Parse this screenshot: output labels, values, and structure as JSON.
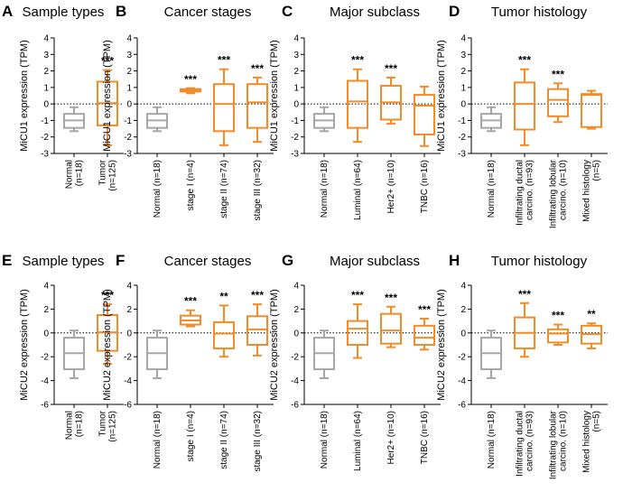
{
  "chart_data": [
    {
      "type": "box",
      "label": "A",
      "title": "Sample types",
      "ylabel": "MiCU1 expression (TPM)",
      "categories": [
        [
          "Normal",
          "(n=18)"
        ],
        [
          "Tumor",
          "(n=125)"
        ]
      ],
      "boxes": [
        {
          "whislo": -1.65,
          "q1": -1.45,
          "med": -1.0,
          "q3": -0.6,
          "whishi": -0.2,
          "color": "#a6a6a6"
        },
        {
          "whislo": -2.5,
          "q1": -1.3,
          "med": 0.05,
          "q3": 1.35,
          "whishi": 2.05,
          "color": "#f28c28"
        }
      ],
      "sig": [
        null,
        "***"
      ],
      "ylim": [
        -3,
        4
      ],
      "yticks": [
        -3,
        -2,
        -1,
        0,
        1,
        2,
        3,
        4
      ],
      "refline": 0
    },
    {
      "type": "box",
      "label": "B",
      "title": "Cancer stages",
      "ylabel": "MiCU1 expression (TPM)",
      "categories": [
        [
          "Normal (n=18)"
        ],
        [
          "stage I (n=4)"
        ],
        [
          "stage II (n=74)"
        ],
        [
          "stage III (n=32)"
        ]
      ],
      "boxes": [
        {
          "whislo": -1.65,
          "q1": -1.45,
          "med": -1.0,
          "q3": -0.6,
          "whishi": -0.2,
          "color": "#a6a6a6"
        },
        {
          "whislo": 0.65,
          "q1": 0.75,
          "med": 0.85,
          "q3": 0.9,
          "whishi": 0.95,
          "color": "#f28c28"
        },
        {
          "whislo": -2.5,
          "q1": -1.65,
          "med": 0.0,
          "q3": 1.2,
          "whishi": 2.1,
          "color": "#f28c28"
        },
        {
          "whislo": -2.3,
          "q1": -1.45,
          "med": 0.1,
          "q3": 1.2,
          "whishi": 1.6,
          "color": "#f28c28"
        }
      ],
      "sig": [
        null,
        "***",
        "***",
        "***"
      ],
      "ylim": [
        -3,
        4
      ],
      "yticks": [
        -3,
        -2,
        -1,
        0,
        1,
        2,
        3,
        4
      ],
      "refline": 0
    },
    {
      "type": "box",
      "label": "C",
      "title": "Major subclass",
      "ylabel": "MiCU1 expression (TPM)",
      "categories": [
        [
          "Normal (n=18)"
        ],
        [
          "Luminal (n=64)"
        ],
        [
          "Her2+ (n=10)"
        ],
        [
          "TNBC (n=16)"
        ]
      ],
      "boxes": [
        {
          "whislo": -1.65,
          "q1": -1.45,
          "med": -1.0,
          "q3": -0.6,
          "whishi": -0.2,
          "color": "#a6a6a6"
        },
        {
          "whislo": -2.3,
          "q1": -1.45,
          "med": 0.15,
          "q3": 1.4,
          "whishi": 2.1,
          "color": "#f28c28"
        },
        {
          "whislo": -1.2,
          "q1": -0.95,
          "med": 0.1,
          "q3": 1.1,
          "whishi": 1.6,
          "color": "#f28c28"
        },
        {
          "whislo": -2.55,
          "q1": -1.85,
          "med": -0.1,
          "q3": 0.55,
          "whishi": 1.05,
          "color": "#f28c28"
        }
      ],
      "sig": [
        null,
        "***",
        "***",
        null
      ],
      "ylim": [
        -3,
        4
      ],
      "yticks": [
        -3,
        -2,
        -1,
        0,
        1,
        2,
        3,
        4
      ],
      "refline": 0
    },
    {
      "type": "box",
      "label": "D",
      "title": "Tumor histology",
      "ylabel": "MiCU1 expression (TPM)",
      "categories": [
        [
          "Normal (n=18)"
        ],
        [
          "Infiltrating ductal",
          "carcino. (n=93)"
        ],
        [
          "Infiltrating lobular",
          "carcino. (n=10)"
        ],
        [
          "Mixed histology",
          "(n=5)"
        ]
      ],
      "boxes": [
        {
          "whislo": -1.65,
          "q1": -1.45,
          "med": -1.0,
          "q3": -0.6,
          "whishi": -0.2,
          "color": "#a6a6a6"
        },
        {
          "whislo": -2.5,
          "q1": -1.55,
          "med": 0.0,
          "q3": 1.3,
          "whishi": 2.1,
          "color": "#f28c28"
        },
        {
          "whislo": -1.1,
          "q1": -0.75,
          "med": 0.25,
          "q3": 0.9,
          "whishi": 1.25,
          "color": "#f28c28"
        },
        {
          "whislo": -1.5,
          "q1": -1.4,
          "med": 0.55,
          "q3": 0.6,
          "whishi": 0.8,
          "color": "#f28c28"
        }
      ],
      "sig": [
        null,
        "***",
        "***",
        null
      ],
      "ylim": [
        -3,
        4
      ],
      "yticks": [
        -3,
        -2,
        -1,
        0,
        1,
        2,
        3,
        4
      ],
      "refline": 0
    },
    {
      "type": "box",
      "label": "E",
      "title": "Sample types",
      "ylabel": "MiCU2 expression (TPM)",
      "categories": [
        [
          "Normal",
          "(n=18)"
        ],
        [
          "Tumor",
          "(n=125)"
        ]
      ],
      "boxes": [
        {
          "whislo": -3.8,
          "q1": -3.05,
          "med": -1.7,
          "q3": -0.4,
          "whishi": 0.2,
          "color": "#a6a6a6"
        },
        {
          "whislo": -2.6,
          "q1": -1.5,
          "med": 0.05,
          "q3": 1.5,
          "whishi": 2.4,
          "color": "#f28c28"
        }
      ],
      "sig": [
        null,
        "***"
      ],
      "ylim": [
        -6,
        4
      ],
      "yticks": [
        -6,
        -4,
        -2,
        0,
        2,
        4
      ],
      "refline": 0
    },
    {
      "type": "box",
      "label": "F",
      "title": "Cancer stages",
      "ylabel": "MiCU2 expression (TPM)",
      "categories": [
        [
          "Normal (n=18)"
        ],
        [
          "stage I (n=4)"
        ],
        [
          "stage II (n=74)"
        ],
        [
          "stage III (n=32)"
        ]
      ],
      "boxes": [
        {
          "whislo": -3.8,
          "q1": -3.05,
          "med": -1.7,
          "q3": -0.4,
          "whishi": 0.2,
          "color": "#a6a6a6"
        },
        {
          "whislo": 0.55,
          "q1": 0.7,
          "med": 1.05,
          "q3": 1.45,
          "whishi": 1.9,
          "color": "#f28c28"
        },
        {
          "whislo": -2.0,
          "q1": -1.3,
          "med": -0.05,
          "q3": 0.9,
          "whishi": 2.3,
          "color": "#f28c28"
        },
        {
          "whislo": -1.9,
          "q1": -1.0,
          "med": 0.3,
          "q3": 1.4,
          "whishi": 2.4,
          "color": "#f28c28"
        }
      ],
      "sig": [
        null,
        "***",
        "**",
        "***"
      ],
      "ylim": [
        -6,
        4
      ],
      "yticks": [
        -6,
        -4,
        -2,
        0,
        2,
        4
      ],
      "refline": 0
    },
    {
      "type": "box",
      "label": "G",
      "title": "Major subclass",
      "ylabel": "MiCU2 expression (TPM)",
      "categories": [
        [
          "Normal (n=18)"
        ],
        [
          "Luminal (n=64)"
        ],
        [
          "Her2+ (n=10)"
        ],
        [
          "TNBC (n=16)"
        ]
      ],
      "boxes": [
        {
          "whislo": -3.8,
          "q1": -3.05,
          "med": -1.7,
          "q3": -0.4,
          "whishi": 0.2,
          "color": "#a6a6a6"
        },
        {
          "whislo": -2.1,
          "q1": -1.0,
          "med": 0.35,
          "q3": 1.0,
          "whishi": 2.4,
          "color": "#f28c28"
        },
        {
          "whislo": -1.2,
          "q1": -0.9,
          "med": 0.2,
          "q3": 1.6,
          "whishi": 2.2,
          "color": "#f28c28"
        },
        {
          "whislo": -1.4,
          "q1": -1.0,
          "med": -0.4,
          "q3": 0.6,
          "whishi": 1.2,
          "color": "#f28c28"
        }
      ],
      "sig": [
        null,
        "***",
        "***",
        "***"
      ],
      "ylim": [
        -6,
        4
      ],
      "yticks": [
        -6,
        -4,
        -2,
        0,
        2,
        4
      ],
      "refline": 0
    },
    {
      "type": "box",
      "label": "H",
      "title": "Tumor histology",
      "ylabel": "MiCU2 expression (TPM)",
      "categories": [
        [
          "Normal (n=18)"
        ],
        [
          "Infiltrating ductal",
          "carcino. (n=93)"
        ],
        [
          "Infiltrating lobular",
          "carcino. (n=10)"
        ],
        [
          "Mixed histology",
          "(n=5)"
        ]
      ],
      "boxes": [
        {
          "whislo": -3.8,
          "q1": -3.05,
          "med": -1.7,
          "q3": -0.4,
          "whishi": 0.2,
          "color": "#a6a6a6"
        },
        {
          "whislo": -2.0,
          "q1": -1.3,
          "med": 0.0,
          "q3": 1.3,
          "whishi": 2.5,
          "color": "#f28c28"
        },
        {
          "whislo": -1.0,
          "q1": -0.8,
          "med": -0.05,
          "q3": 0.3,
          "whishi": 0.7,
          "color": "#f28c28"
        },
        {
          "whislo": -1.3,
          "q1": -0.9,
          "med": -0.1,
          "q3": 0.6,
          "whishi": 0.8,
          "color": "#f28c28"
        }
      ],
      "sig": [
        null,
        "***",
        "***",
        "**"
      ],
      "ylim": [
        -6,
        4
      ],
      "yticks": [
        -6,
        -4,
        -2,
        0,
        2,
        4
      ],
      "refline": 0
    }
  ]
}
